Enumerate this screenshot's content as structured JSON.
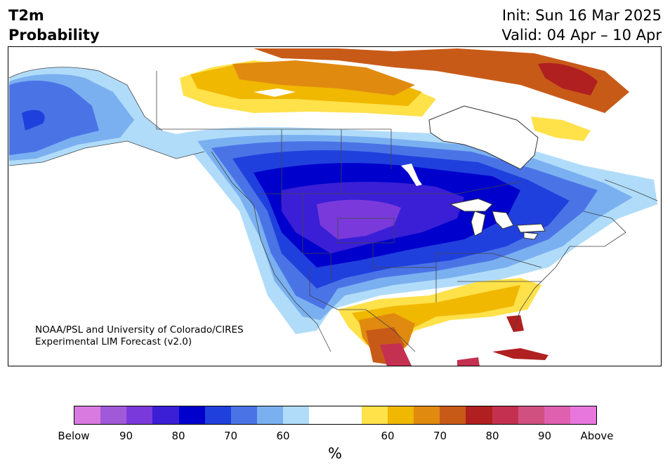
{
  "header": {
    "title_line1": "T2m",
    "title_line2": "Probability",
    "init_text": "Init: Sun 16 Mar 2025",
    "valid_text": "Valid: 04 Apr – 10 Apr"
  },
  "map": {
    "credit_line1": "NOAA/PSL and University of Colorado/CIRES",
    "credit_line2": "Experimental LIM Forecast (v2.0)"
  },
  "colorbar": {
    "unit_label": "%",
    "ticks": [
      "Below",
      "90",
      "80",
      "70",
      "60",
      "60",
      "70",
      "80",
      "90",
      "Above"
    ],
    "below_colors": [
      "#d97ae0",
      "#a05ad8",
      "#7a3adb",
      "#3a1fd6",
      "#0000cc",
      "#2040dd",
      "#4a74e6",
      "#7ab0f0",
      "#b0dcfa"
    ],
    "neutral_color": "#ffffff",
    "above_colors": [
      "#ffe14a",
      "#f0b800",
      "#e08a10",
      "#c85a18",
      "#b02020",
      "#c43050",
      "#d05080",
      "#e060b0",
      "#e877dd"
    ]
  }
}
